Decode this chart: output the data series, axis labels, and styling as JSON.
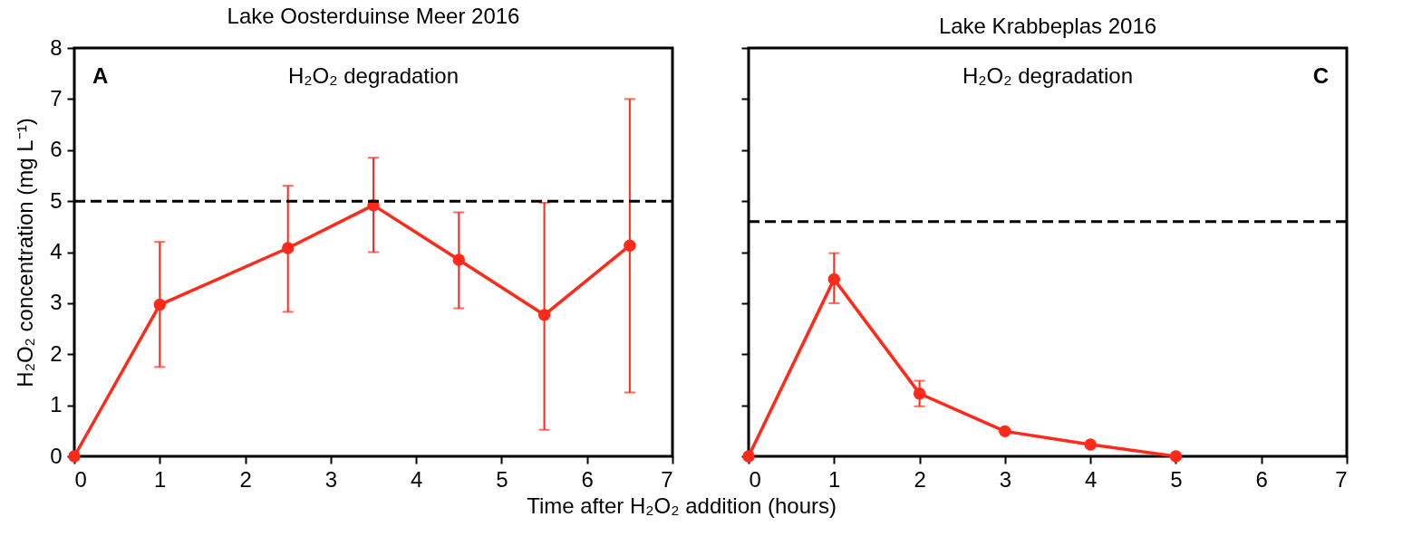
{
  "chart_data": [
    {
      "type": "line",
      "title": "Lake Oosterduinse Meer 2016",
      "ylabel": "H₂O₂ concentration (mg L⁻¹)",
      "xlabel": "Time after H₂O₂ addition (hours)",
      "annotations": [
        "A",
        "H₂O₂ degradation"
      ],
      "x": [
        0,
        1,
        2.5,
        3.5,
        4.5,
        5.5,
        6.5
      ],
      "series": [
        {
          "color": "#ff2a1a",
          "values": [
            0,
            2.97,
            4.08,
            4.92,
            3.85,
            2.77,
            4.13
          ],
          "errors": [
            null,
            [
              1.75,
              4.2
            ],
            [
              2.83,
              5.3
            ],
            [
              4.0,
              5.85
            ],
            [
              2.9,
              4.78
            ],
            [
              0.52,
              4.97
            ],
            [
              1.25,
              7.0
            ]
          ]
        }
      ],
      "xlim": [
        0,
        7
      ],
      "xticks": [
        0,
        1,
        2,
        3,
        4,
        5,
        6,
        7
      ],
      "ylim": [
        0,
        8
      ],
      "yticks": [
        0,
        1,
        2,
        3,
        4,
        5,
        6,
        7,
        8
      ],
      "ref_lines": [
        {
          "axis": "y",
          "value": 5,
          "color": "#000000",
          "line_style": "dashed"
        }
      ],
      "grid": false,
      "marker": "circle",
      "line_style": "solid"
    },
    {
      "type": "line",
      "title": "Lake Krabbeplas 2016",
      "annotations": [
        "H₂O₂ degradation",
        "C"
      ],
      "x": [
        0,
        1,
        2,
        3,
        4,
        5
      ],
      "series": [
        {
          "color": "#ff2a1a",
          "values": [
            0,
            3.47,
            1.23,
            0.49,
            0.23,
            0
          ],
          "errors": [
            null,
            [
              3.0,
              3.98
            ],
            [
              0.98,
              1.48
            ],
            null,
            null,
            null
          ]
        }
      ],
      "xlim": [
        0,
        7
      ],
      "xticks": [
        0,
        1,
        2,
        3,
        4,
        5,
        6,
        7
      ],
      "ylim": [
        0,
        8
      ],
      "yticks": [
        0,
        1,
        2,
        3,
        4,
        5,
        6,
        7,
        8
      ],
      "ref_lines": [
        {
          "axis": "y",
          "value": 4.6,
          "color": "#000000",
          "line_style": "dashed"
        }
      ],
      "grid": false,
      "marker": "circle",
      "line_style": "solid",
      "tick_labels": "x"
    }
  ]
}
